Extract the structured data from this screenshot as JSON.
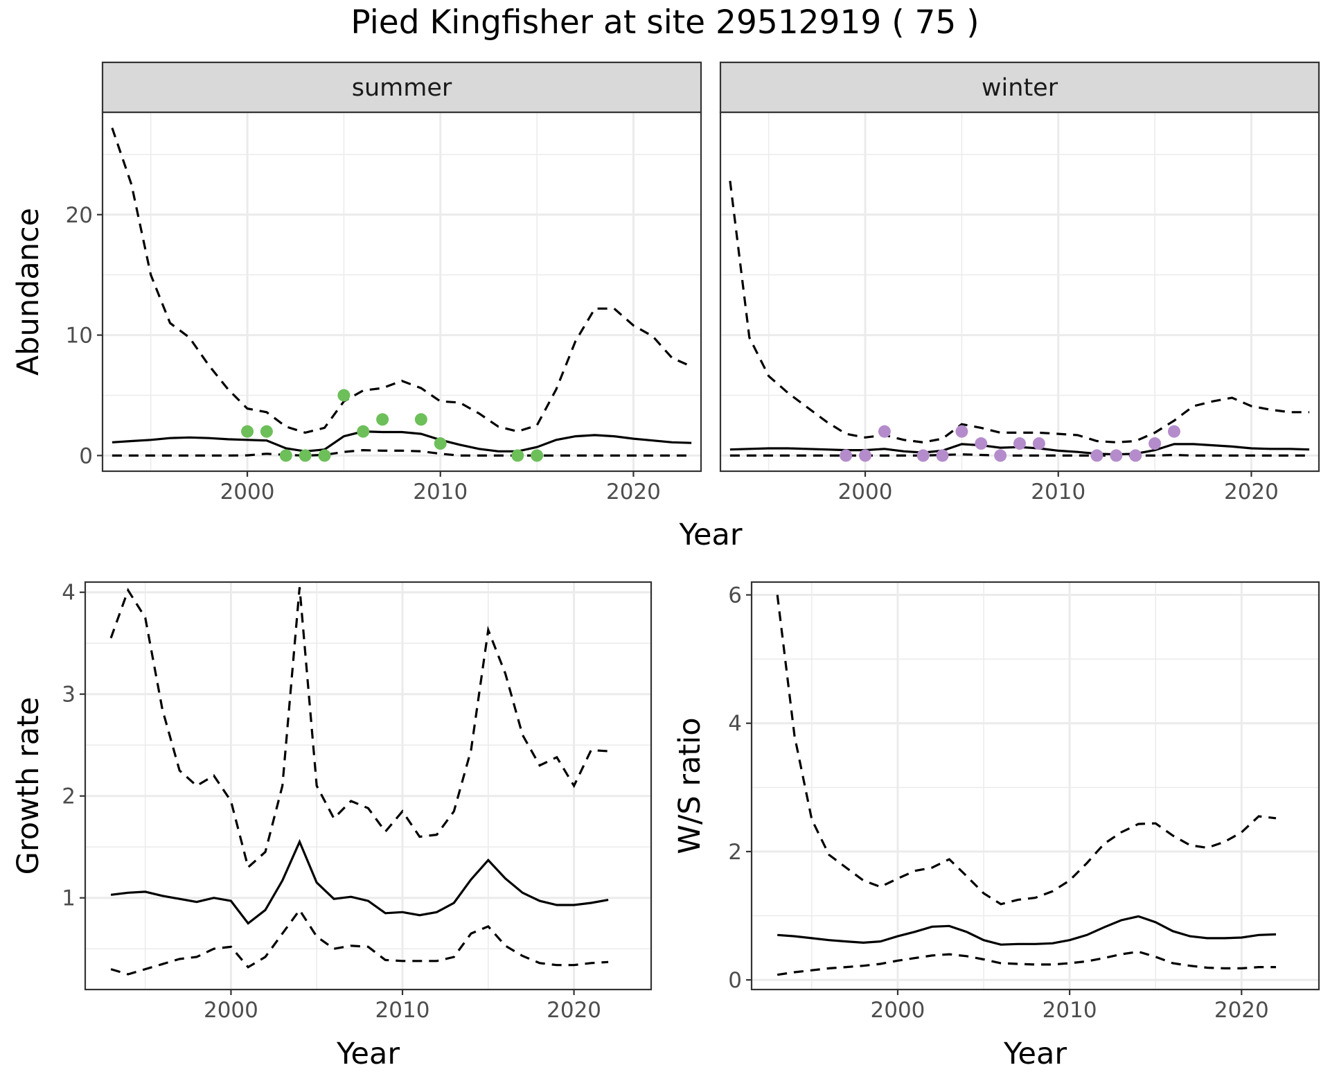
{
  "title": "Pied Kingfisher at site 29512919 ( 75 )",
  "chart_data": [
    {
      "id": "abundance",
      "type": "line",
      "facet_strip_labels": [
        "summer",
        "winter"
      ],
      "xlabel": "Year",
      "ylabel": "Abundance",
      "xlim": [
        1992.5,
        2023.5
      ],
      "ylim": [
        -1.3,
        28.5
      ],
      "x_ticks": [
        2000,
        2010,
        2020
      ],
      "y_ticks": [
        0,
        10,
        20
      ],
      "grid": true,
      "facets": [
        {
          "label": "summer",
          "point_color": "#6DBF5A",
          "series": [
            {
              "name": "",
              "style": "solid",
              "x": [
                1993,
                1994,
                1995,
                1996,
                1997,
                1998,
                1999,
                2000,
                2001,
                2002,
                2003,
                2004,
                2005,
                2006,
                2007,
                2008,
                2009,
                2010,
                2011,
                2012,
                2013,
                2014,
                2015,
                2016,
                2017,
                2018,
                2019,
                2020,
                2021,
                2022,
                2023
              ],
              "y": [
                1.1,
                1.2,
                1.3,
                1.45,
                1.5,
                1.45,
                1.35,
                1.3,
                1.25,
                0.6,
                0.35,
                0.5,
                1.6,
                2.0,
                1.95,
                1.95,
                1.8,
                1.3,
                0.9,
                0.55,
                0.35,
                0.35,
                0.7,
                1.3,
                1.6,
                1.7,
                1.6,
                1.4,
                1.25,
                1.1,
                1.05
              ]
            },
            {
              "name": "",
              "style": "dashed",
              "x": [
                1993,
                1994,
                1995,
                1996,
                1997,
                1998,
                1999,
                2000,
                2001,
                2002,
                2003,
                2004,
                2005,
                2006,
                2007,
                2008,
                2009,
                2010,
                2011,
                2012,
                2013,
                2014,
                2015,
                2016,
                2017,
                2018,
                2019,
                2020,
                2021,
                2022,
                2023
              ],
              "y": [
                27.2,
                22.5,
                15.0,
                11.0,
                9.8,
                7.5,
                5.5,
                3.9,
                3.6,
                2.4,
                1.9,
                2.3,
                4.5,
                5.4,
                5.6,
                6.2,
                5.6,
                4.5,
                4.4,
                3.5,
                2.4,
                2.0,
                2.5,
                5.5,
                9.5,
                12.2,
                12.2,
                10.8,
                9.9,
                8.1,
                7.4
              ]
            },
            {
              "name": "",
              "style": "dashed",
              "x": [
                1993,
                1994,
                1995,
                1996,
                1997,
                1998,
                1999,
                2000,
                2001,
                2002,
                2003,
                2004,
                2005,
                2006,
                2007,
                2008,
                2009,
                2010,
                2011,
                2012,
                2013,
                2014,
                2015,
                2016,
                2017,
                2018,
                2019,
                2020,
                2021,
                2022,
                2023
              ],
              "y": [
                0,
                0,
                0,
                0,
                0,
                0,
                0,
                0.02,
                0.15,
                0.05,
                0,
                0.05,
                0.3,
                0.45,
                0.4,
                0.4,
                0.35,
                0.15,
                0,
                0,
                0,
                0,
                0,
                0,
                0,
                0,
                0,
                0,
                0,
                0,
                0
              ]
            }
          ],
          "points": {
            "x": [
              2000,
              2001,
              2002,
              2003,
              2004,
              2005,
              2006,
              2007,
              2009,
              2010,
              2014,
              2015
            ],
            "y": [
              2,
              2,
              0,
              0,
              0,
              5,
              2,
              3,
              3,
              1,
              0,
              0
            ]
          }
        },
        {
          "label": "winter",
          "point_color": "#B48CCB",
          "series": [
            {
              "name": "",
              "style": "solid",
              "x": [
                1993,
                1994,
                1995,
                1996,
                1997,
                1998,
                1999,
                2000,
                2001,
                2002,
                2003,
                2004,
                2005,
                2006,
                2007,
                2008,
                2009,
                2010,
                2011,
                2012,
                2013,
                2014,
                2015,
                2016,
                2017,
                2018,
                2019,
                2020,
                2021,
                2022,
                2023
              ],
              "y": [
                0.5,
                0.55,
                0.6,
                0.6,
                0.55,
                0.5,
                0.45,
                0.45,
                0.55,
                0.35,
                0.25,
                0.4,
                0.95,
                0.85,
                0.65,
                0.7,
                0.6,
                0.4,
                0.3,
                0.15,
                0.1,
                0.15,
                0.45,
                0.95,
                0.95,
                0.85,
                0.75,
                0.6,
                0.55,
                0.55,
                0.5
              ]
            },
            {
              "name": "",
              "style": "dashed",
              "x": [
                1993,
                1994,
                1995,
                1996,
                1997,
                1998,
                1999,
                2000,
                2001,
                2002,
                2003,
                2004,
                2005,
                2006,
                2007,
                2008,
                2009,
                2010,
                2011,
                2012,
                2013,
                2014,
                2015,
                2016,
                2017,
                2018,
                2019,
                2020,
                2021,
                2022,
                2023
              ],
              "y": [
                22.8,
                9.8,
                6.6,
                5.2,
                4.0,
                2.8,
                1.8,
                1.5,
                1.7,
                1.3,
                1.1,
                1.4,
                2.6,
                2.3,
                1.9,
                1.9,
                1.9,
                1.8,
                1.7,
                1.2,
                1.1,
                1.2,
                1.9,
                2.9,
                4.1,
                4.5,
                4.8,
                4.1,
                3.8,
                3.6,
                3.6
              ]
            },
            {
              "name": "",
              "style": "dashed",
              "x": [
                1993,
                1994,
                1995,
                1996,
                1997,
                1998,
                1999,
                2000,
                2001,
                2002,
                2003,
                2004,
                2005,
                2006,
                2007,
                2008,
                2009,
                2010,
                2011,
                2012,
                2013,
                2014,
                2015,
                2016,
                2017,
                2018,
                2019,
                2020,
                2021,
                2022,
                2023
              ],
              "y": [
                0,
                0,
                0,
                0,
                0,
                0,
                0,
                0,
                0,
                0,
                0,
                0.05,
                0.1,
                0.05,
                0,
                0,
                0,
                0,
                0,
                0,
                0,
                0,
                0,
                0.05,
                0,
                0,
                0,
                0,
                0,
                0,
                0
              ]
            }
          ],
          "points": {
            "x": [
              1999,
              2000,
              2001,
              2003,
              2004,
              2005,
              2006,
              2007,
              2008,
              2009,
              2012,
              2013,
              2014,
              2015,
              2016
            ],
            "y": [
              0,
              0,
              2,
              0,
              0,
              2,
              1,
              0,
              1,
              1,
              0,
              0,
              0,
              1,
              2
            ]
          }
        }
      ]
    },
    {
      "id": "growth",
      "type": "line",
      "xlabel": "Year",
      "ylabel": "Growth rate",
      "xlim": [
        1991.5,
        2024.5
      ],
      "ylim": [
        0.1,
        4.1
      ],
      "x_ticks": [
        2000,
        2010,
        2020
      ],
      "y_ticks": [
        1,
        2,
        3,
        4
      ],
      "grid": true,
      "series": [
        {
          "name": "",
          "style": "solid",
          "x": [
            1993,
            1994,
            1995,
            1996,
            1997,
            1998,
            1999,
            2000,
            2001,
            2002,
            2003,
            2004,
            2005,
            2006,
            2007,
            2008,
            2009,
            2010,
            2011,
            2012,
            2013,
            2014,
            2015,
            2016,
            2017,
            2018,
            2019,
            2020,
            2021,
            2022
          ],
          "y": [
            1.03,
            1.05,
            1.06,
            1.02,
            0.99,
            0.96,
            1.0,
            0.97,
            0.75,
            0.88,
            1.17,
            1.55,
            1.15,
            0.99,
            1.01,
            0.97,
            0.85,
            0.86,
            0.83,
            0.86,
            0.95,
            1.18,
            1.37,
            1.19,
            1.05,
            0.97,
            0.93,
            0.93,
            0.95,
            0.98
          ]
        },
        {
          "name": "",
          "style": "dashed",
          "x": [
            1993,
            1994,
            1995,
            1996,
            1997,
            1998,
            1999,
            2000,
            2001,
            2002,
            2003,
            2004,
            2005,
            2006,
            2007,
            2008,
            2009,
            2010,
            2011,
            2012,
            2013,
            2014,
            2015,
            2016,
            2017,
            2018,
            2019,
            2020,
            2021,
            2022
          ],
          "y": [
            3.55,
            4.02,
            3.75,
            2.85,
            2.25,
            2.1,
            2.2,
            1.95,
            1.3,
            1.45,
            2.1,
            4.05,
            2.1,
            1.78,
            1.95,
            1.88,
            1.65,
            1.85,
            1.6,
            1.62,
            1.85,
            2.45,
            3.63,
            3.2,
            2.6,
            2.3,
            2.38,
            2.1,
            2.45,
            2.44
          ]
        },
        {
          "name": "",
          "style": "dashed",
          "x": [
            1993,
            1994,
            1995,
            1996,
            1997,
            1998,
            1999,
            2000,
            2001,
            2002,
            2003,
            2004,
            2005,
            2006,
            2007,
            2008,
            2009,
            2010,
            2011,
            2012,
            2013,
            2014,
            2015,
            2016,
            2017,
            2018,
            2019,
            2020,
            2021,
            2022
          ],
          "y": [
            0.3,
            0.25,
            0.3,
            0.35,
            0.4,
            0.42,
            0.5,
            0.52,
            0.32,
            0.42,
            0.65,
            0.88,
            0.62,
            0.5,
            0.53,
            0.52,
            0.39,
            0.38,
            0.38,
            0.38,
            0.42,
            0.65,
            0.72,
            0.53,
            0.43,
            0.36,
            0.34,
            0.34,
            0.36,
            0.37
          ]
        }
      ]
    },
    {
      "id": "ws_ratio",
      "type": "line",
      "xlabel": "Year",
      "ylabel": "W/S ratio",
      "xlim": [
        1991.5,
        2024.5
      ],
      "ylim": [
        -0.15,
        6.2
      ],
      "x_ticks": [
        2000,
        2010,
        2020
      ],
      "y_ticks": [
        0,
        2,
        4,
        6
      ],
      "grid": true,
      "series": [
        {
          "name": "",
          "style": "solid",
          "x": [
            1993,
            1994,
            1995,
            1996,
            1997,
            1998,
            1999,
            2000,
            2001,
            2002,
            2003,
            2004,
            2005,
            2006,
            2007,
            2008,
            2009,
            2010,
            2011,
            2012,
            2013,
            2014,
            2015,
            2016,
            2017,
            2018,
            2019,
            2020,
            2021,
            2022
          ],
          "y": [
            0.7,
            0.68,
            0.65,
            0.62,
            0.6,
            0.58,
            0.6,
            0.68,
            0.75,
            0.83,
            0.84,
            0.75,
            0.62,
            0.55,
            0.56,
            0.56,
            0.57,
            0.62,
            0.7,
            0.82,
            0.93,
            0.99,
            0.9,
            0.76,
            0.68,
            0.65,
            0.65,
            0.66,
            0.7,
            0.71
          ]
        },
        {
          "name": "",
          "style": "dashed",
          "x": [
            1993,
            1994,
            1995,
            1996,
            1997,
            1998,
            1999,
            2000,
            2001,
            2002,
            2003,
            2004,
            2005,
            2006,
            2007,
            2008,
            2009,
            2010,
            2011,
            2012,
            2013,
            2014,
            2015,
            2016,
            2017,
            2018,
            2019,
            2020,
            2021,
            2022
          ],
          "y": [
            6.0,
            3.8,
            2.5,
            1.95,
            1.75,
            1.55,
            1.45,
            1.58,
            1.7,
            1.75,
            1.88,
            1.62,
            1.35,
            1.18,
            1.25,
            1.28,
            1.38,
            1.55,
            1.82,
            2.12,
            2.3,
            2.43,
            2.44,
            2.25,
            2.1,
            2.06,
            2.15,
            2.3,
            2.55,
            2.52
          ]
        },
        {
          "name": "",
          "style": "dashed",
          "x": [
            1993,
            1994,
            1995,
            1996,
            1997,
            1998,
            1999,
            2000,
            2001,
            2002,
            2003,
            2004,
            2005,
            2006,
            2007,
            2008,
            2009,
            2010,
            2011,
            2012,
            2013,
            2014,
            2015,
            2016,
            2017,
            2018,
            2019,
            2020,
            2021,
            2022
          ],
          "y": [
            0.08,
            0.12,
            0.15,
            0.18,
            0.2,
            0.22,
            0.25,
            0.3,
            0.34,
            0.38,
            0.4,
            0.37,
            0.32,
            0.26,
            0.25,
            0.24,
            0.24,
            0.26,
            0.29,
            0.34,
            0.4,
            0.44,
            0.36,
            0.26,
            0.22,
            0.19,
            0.18,
            0.18,
            0.2,
            0.2
          ]
        }
      ]
    }
  ]
}
